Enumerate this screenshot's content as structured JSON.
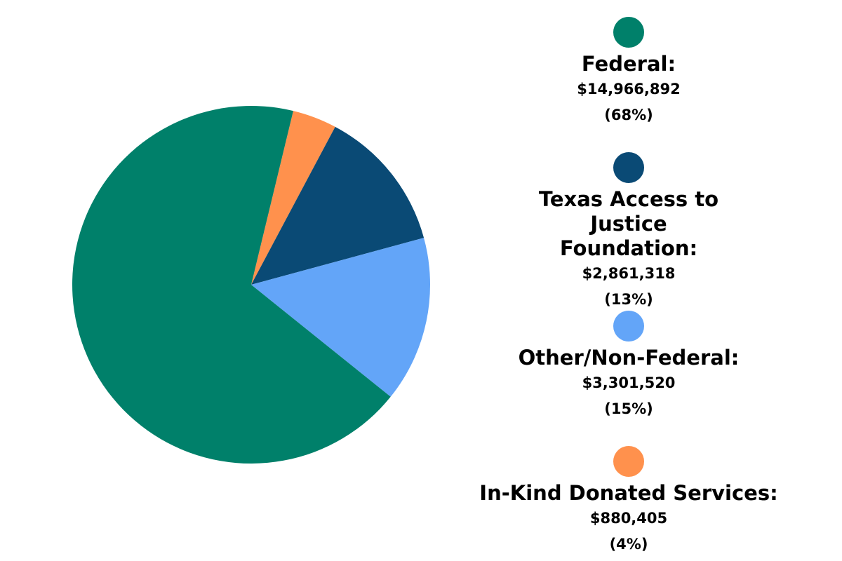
{
  "chart_data": {
    "type": "pie",
    "start_slice": "In-Kind Donated Services",
    "direction": "clockwise",
    "legend_placement": "right",
    "slices": [
      {
        "name": "Federal:",
        "value": 14966892,
        "value_label": "$14,966,892",
        "percent_label": "(68%)",
        "color": "#00806A"
      },
      {
        "name": "Texas Access to Justice Foundation:",
        "value": 2861318,
        "value_label": "$2,861,318",
        "percent_label": "(13%)",
        "color": "#0A4A75"
      },
      {
        "name": "Other/Non-Federal:",
        "value": 3301520,
        "value_label": "$3,301,520",
        "percent_label": "(15%)",
        "color": "#63A5F8"
      },
      {
        "name": "In-Kind Donated Services:",
        "value": 880405,
        "value_label": "$880,405",
        "percent_label": "(4%)",
        "color": "#FF914D"
      }
    ]
  }
}
